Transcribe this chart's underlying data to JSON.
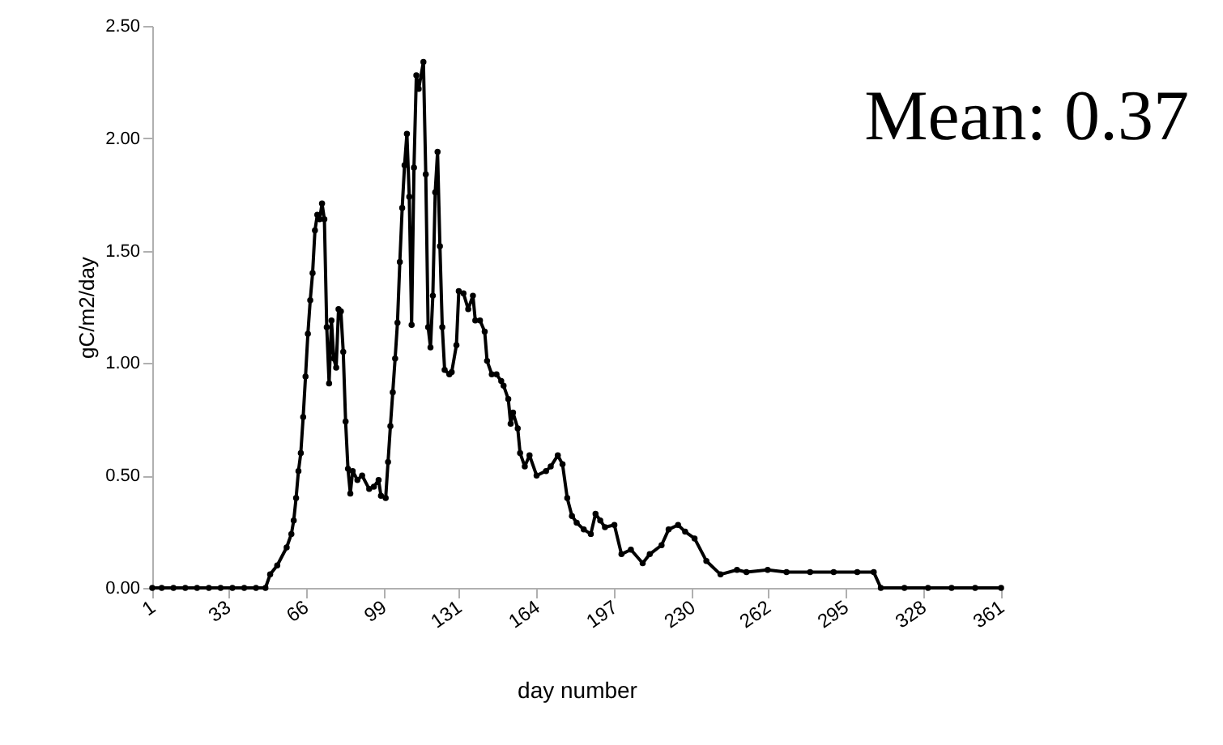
{
  "chart_data": {
    "type": "line",
    "xlabel": "day number",
    "ylabel": "gC/m2/day",
    "annotations": [
      "Mean: 0.37"
    ],
    "x": [
      1,
      5,
      10,
      15,
      20,
      25,
      30,
      35,
      40,
      45,
      49,
      51,
      54,
      58,
      60,
      61,
      62,
      63,
      64,
      65,
      66,
      67,
      68,
      69,
      70,
      71,
      72,
      73,
      74,
      75,
      76,
      77,
      78,
      79,
      80,
      81,
      82,
      83,
      84,
      85,
      86,
      88,
      90,
      93,
      95,
      97,
      98,
      100,
      101,
      102,
      103,
      104,
      105,
      106,
      107,
      108,
      109,
      110,
      111,
      112,
      113,
      114,
      116,
      117,
      118,
      119,
      120,
      121,
      122,
      123,
      124,
      125,
      127,
      128,
      130,
      131,
      133,
      135,
      137,
      138,
      140,
      142,
      143,
      145,
      147,
      149,
      150,
      152,
      153,
      154,
      156,
      157,
      159,
      161,
      164,
      168,
      170,
      173,
      175,
      177,
      179,
      181,
      184,
      187,
      189,
      191,
      193,
      197,
      200,
      204,
      209,
      212,
      217,
      220,
      224,
      227,
      231,
      236,
      242,
      249,
      253,
      262,
      270,
      280,
      290,
      300,
      307,
      310,
      320,
      330,
      340,
      350,
      361
    ],
    "series": [
      {
        "color": "#000000",
        "values": [
          0,
          0,
          0,
          0,
          0,
          0,
          0,
          0,
          0,
          0,
          0,
          0.06,
          0.1,
          0.18,
          0.24,
          0.3,
          0.4,
          0.52,
          0.6,
          0.76,
          0.94,
          1.13,
          1.28,
          1.4,
          1.59,
          1.66,
          1.64,
          1.71,
          1.64,
          1.16,
          0.91,
          1.19,
          1.02,
          0.98,
          1.24,
          1.23,
          1.05,
          0.74,
          0.53,
          0.42,
          0.52,
          0.48,
          0.5,
          0.44,
          0.45,
          0.48,
          0.41,
          0.4,
          0.56,
          0.72,
          0.87,
          1.02,
          1.18,
          1.45,
          1.69,
          1.88,
          2.02,
          1.74,
          1.17,
          1.87,
          2.28,
          2.22,
          2.34,
          1.84,
          1.16,
          1.07,
          1.3,
          1.76,
          1.94,
          1.52,
          1.16,
          0.97,
          0.95,
          0.96,
          1.08,
          1.32,
          1.31,
          1.24,
          1.3,
          1.19,
          1.19,
          1.14,
          1.01,
          0.95,
          0.95,
          0.92,
          0.9,
          0.84,
          0.73,
          0.78,
          0.71,
          0.6,
          0.54,
          0.59,
          0.5,
          0.52,
          0.54,
          0.59,
          0.55,
          0.4,
          0.32,
          0.29,
          0.26,
          0.24,
          0.33,
          0.3,
          0.27,
          0.28,
          0.15,
          0.17,
          0.11,
          0.15,
          0.19,
          0.26,
          0.28,
          0.25,
          0.22,
          0.12,
          0.06,
          0.08,
          0.07,
          0.08,
          0.07,
          0.07,
          0.07,
          0.07,
          0.07,
          0,
          0,
          0,
          0,
          0,
          0
        ]
      }
    ],
    "xlim": [
      1,
      361
    ],
    "xticks": [
      1,
      33,
      66,
      99,
      131,
      164,
      197,
      230,
      262,
      295,
      328,
      361
    ],
    "ylim": [
      0,
      2.5
    ],
    "yticks": [
      {
        "value": 0,
        "label": "0.00"
      },
      {
        "value": 0.5,
        "label": "0.50"
      },
      {
        "value": 1,
        "label": "1.00"
      },
      {
        "value": 1.5,
        "label": "1.50"
      },
      {
        "value": 2,
        "label": "2.00"
      },
      {
        "value": 2.5,
        "label": "2.50"
      }
    ],
    "marker": "circle",
    "line_style": "solid",
    "grid": false
  }
}
